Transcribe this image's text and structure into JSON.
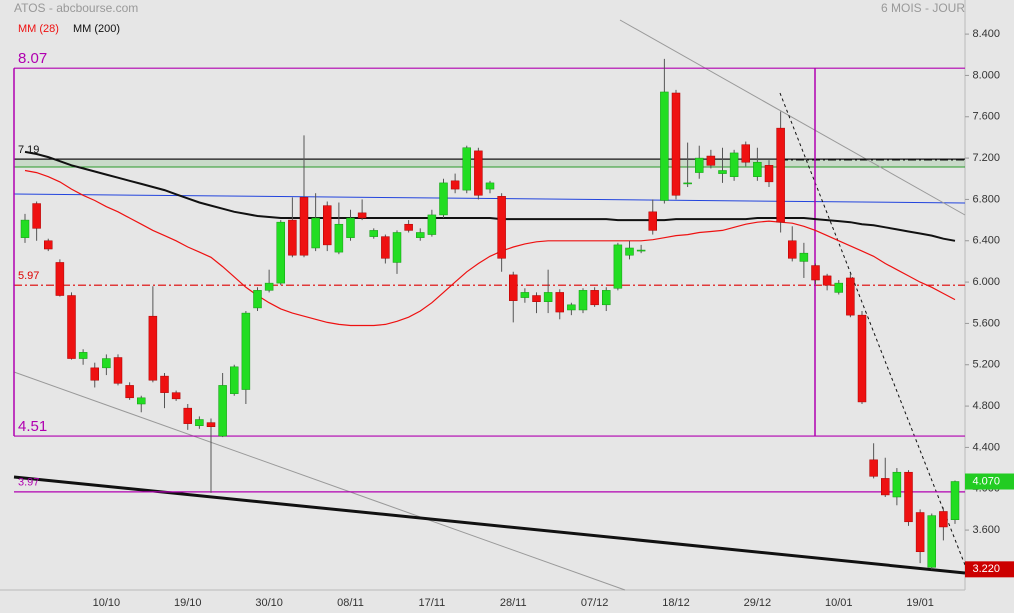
{
  "chart_data": {
    "type": "candlestick",
    "title": "ATOS - abcbourse.com",
    "subtitle": "6 MOIS - JOUR",
    "categories": [
      null,
      null,
      null,
      null,
      null,
      null,
      null,
      "10/10",
      null,
      null,
      null,
      null,
      null,
      null,
      "19/10",
      null,
      null,
      null,
      null,
      null,
      null,
      "30/10",
      null,
      null,
      null,
      null,
      null,
      null,
      "08/11",
      null,
      null,
      null,
      null,
      null,
      null,
      "17/11",
      null,
      null,
      null,
      null,
      null,
      null,
      "28/11",
      null,
      null,
      null,
      null,
      null,
      null,
      "07/12",
      null,
      null,
      null,
      null,
      null,
      null,
      "18/12",
      null,
      null,
      null,
      null,
      null,
      null,
      "29/12",
      null,
      null,
      null,
      null,
      null,
      null,
      "10/01",
      null,
      null,
      null,
      null,
      null,
      null,
      "19/01",
      null,
      null,
      null
    ],
    "open": [
      6.43,
      6.76,
      6.4,
      6.19,
      5.87,
      5.26,
      5.17,
      5.17,
      5.27,
      5.0,
      4.82,
      5.67,
      5.09,
      4.93,
      4.78,
      4.61,
      4.64,
      4.51,
      4.92,
      4.96,
      5.75,
      5.92,
      5.99,
      6.6,
      6.82,
      6.33,
      6.74,
      6.29,
      6.43,
      6.67,
      6.44,
      6.44,
      6.19,
      6.56,
      6.43,
      6.46,
      6.65,
      6.98,
      6.89,
      7.27,
      6.9,
      6.83,
      6.07,
      5.85,
      5.87,
      5.81,
      5.9,
      5.73,
      5.73,
      5.92,
      5.78,
      5.94,
      6.26,
      6.3,
      6.68,
      6.79,
      7.83,
      6.95,
      7.06,
      7.22,
      7.05,
      7.02,
      7.33,
      7.02,
      7.13,
      7.49,
      6.4,
      6.2,
      6.16,
      6.06,
      5.9,
      6.04,
      5.68,
      4.28,
      4.1,
      3.92,
      4.16,
      3.77,
      3.24,
      3.78,
      3.7
    ],
    "high": [
      6.66,
      6.78,
      6.42,
      6.22,
      5.9,
      5.35,
      5.22,
      5.3,
      5.3,
      5.03,
      4.9,
      5.96,
      5.12,
      4.95,
      4.82,
      4.7,
      4.68,
      5.12,
      5.2,
      5.72,
      5.95,
      6.12,
      6.6,
      6.82,
      7.42,
      6.86,
      6.78,
      6.77,
      6.7,
      6.8,
      6.52,
      6.46,
      6.5,
      6.6,
      6.52,
      6.7,
      7.0,
      7.05,
      7.32,
      7.3,
      6.98,
      6.86,
      6.1,
      5.94,
      5.9,
      6.12,
      5.93,
      5.8,
      5.94,
      5.95,
      5.95,
      6.38,
      6.4,
      6.36,
      6.8,
      8.16,
      7.86,
      7.35,
      7.32,
      7.28,
      7.3,
      7.28,
      7.36,
      7.3,
      7.18,
      7.65,
      6.54,
      6.38,
      6.18,
      6.08,
      6.02,
      6.08,
      5.72,
      4.44,
      4.3,
      4.2,
      4.18,
      3.8,
      3.76,
      3.82,
      4.08
    ],
    "low": [
      6.38,
      6.4,
      6.3,
      5.86,
      5.25,
      5.2,
      4.98,
      5.1,
      5.0,
      4.86,
      4.74,
      5.03,
      4.78,
      4.85,
      4.57,
      4.58,
      3.96,
      4.5,
      4.9,
      4.82,
      5.72,
      5.9,
      5.97,
      6.24,
      6.24,
      6.3,
      6.3,
      6.27,
      6.4,
      6.6,
      6.42,
      6.18,
      6.08,
      6.48,
      6.4,
      6.44,
      6.62,
      6.86,
      6.86,
      6.8,
      6.86,
      6.1,
      5.61,
      5.8,
      5.7,
      5.7,
      5.64,
      5.68,
      5.7,
      5.76,
      5.72,
      5.92,
      6.22,
      6.28,
      6.46,
      6.76,
      6.8,
      6.92,
      7.0,
      7.1,
      6.96,
      6.98,
      7.12,
      6.98,
      6.92,
      6.48,
      6.2,
      6.04,
      5.98,
      5.92,
      5.88,
      5.66,
      4.82,
      4.1,
      3.92,
      3.84,
      3.64,
      3.28,
      3.22,
      3.5,
      3.66
    ],
    "close": [
      6.6,
      6.52,
      6.32,
      5.87,
      5.26,
      5.32,
      5.05,
      5.26,
      5.02,
      4.88,
      4.88,
      5.05,
      4.93,
      4.87,
      4.63,
      4.67,
      4.6,
      5.0,
      5.18,
      5.7,
      5.92,
      5.99,
      6.58,
      6.26,
      6.26,
      6.62,
      6.36,
      6.56,
      6.62,
      6.62,
      6.5,
      6.23,
      6.48,
      6.5,
      6.48,
      6.65,
      6.96,
      6.9,
      7.3,
      6.84,
      6.96,
      6.23,
      5.82,
      5.9,
      5.81,
      5.9,
      5.71,
      5.78,
      5.92,
      5.78,
      5.92,
      6.36,
      6.33,
      6.31,
      6.5,
      7.84,
      6.84,
      6.96,
      7.2,
      7.13,
      7.08,
      7.25,
      7.16,
      7.16,
      6.97,
      6.58,
      6.23,
      6.28,
      6.02,
      5.97,
      5.99,
      5.68,
      4.84,
      4.12,
      3.94,
      4.16,
      3.68,
      3.39,
      3.74,
      3.63,
      4.07
    ],
    "up_color": "#22dd22",
    "down_color": "#ee1111",
    "series": [
      {
        "name": "MM (28)",
        "color": "#ee1111",
        "values": [
          7.08,
          7.06,
          7.02,
          6.97,
          6.9,
          6.84,
          6.79,
          6.73,
          6.68,
          6.62,
          6.56,
          6.5,
          6.45,
          6.4,
          6.34,
          6.29,
          6.24,
          6.15,
          6.05,
          5.95,
          5.87,
          5.8,
          5.74,
          5.7,
          5.67,
          5.64,
          5.61,
          5.59,
          5.58,
          5.58,
          5.58,
          5.59,
          5.62,
          5.66,
          5.72,
          5.8,
          5.9,
          6.0,
          6.1,
          6.18,
          6.25,
          6.3,
          6.34,
          6.37,
          6.39,
          6.4,
          6.4,
          6.4,
          6.4,
          6.4,
          6.4,
          6.4,
          6.4,
          6.4,
          6.41,
          6.43,
          6.45,
          6.46,
          6.48,
          6.49,
          6.5,
          6.53,
          6.56,
          6.58,
          6.59,
          6.58,
          6.57,
          6.54,
          6.5,
          6.45,
          6.4,
          6.35,
          6.3,
          6.25,
          6.18,
          6.12,
          6.06,
          6.0,
          5.95,
          5.89,
          5.83
        ]
      },
      {
        "name": "MM (200)",
        "color": "#111111",
        "values": [
          7.26,
          7.24,
          7.21,
          7.17,
          7.13,
          7.1,
          7.07,
          7.04,
          7.01,
          6.98,
          6.95,
          6.92,
          6.89,
          6.85,
          6.81,
          6.77,
          6.74,
          6.71,
          6.68,
          6.66,
          6.64,
          6.63,
          6.62,
          6.62,
          6.62,
          6.62,
          6.62,
          6.62,
          6.62,
          6.62,
          6.62,
          6.62,
          6.62,
          6.62,
          6.62,
          6.62,
          6.62,
          6.62,
          6.62,
          6.62,
          6.62,
          6.61,
          6.61,
          6.61,
          6.61,
          6.61,
          6.61,
          6.61,
          6.61,
          6.61,
          6.61,
          6.6,
          6.6,
          6.6,
          6.6,
          6.6,
          6.61,
          6.61,
          6.61,
          6.61,
          6.61,
          6.61,
          6.61,
          6.62,
          6.62,
          6.62,
          6.62,
          6.62,
          6.61,
          6.6,
          6.59,
          6.58,
          6.56,
          6.55,
          6.53,
          6.51,
          6.49,
          6.47,
          6.45,
          6.42,
          6.4
        ]
      }
    ],
    "ylim": [
      3.02,
      8.73
    ],
    "yticks": [
      {
        "value": 8.4,
        "label": "8.400"
      },
      {
        "value": 8.0,
        "label": "8.000"
      },
      {
        "value": 7.6,
        "label": "7.600"
      },
      {
        "value": 7.2,
        "label": "7.200"
      },
      {
        "value": 6.8,
        "label": "6.800"
      },
      {
        "value": 6.4,
        "label": "6.400"
      },
      {
        "value": 6.0,
        "label": "6.000"
      },
      {
        "value": 5.6,
        "label": "5.600"
      },
      {
        "value": 5.2,
        "label": "5.200"
      },
      {
        "value": 4.8,
        "label": "4.800"
      },
      {
        "value": 4.4,
        "label": "4.400"
      },
      {
        "value": 4.0,
        "label": "4.000"
      },
      {
        "value": 3.6,
        "label": "3.600"
      }
    ],
    "levels": [
      {
        "value": 8.07,
        "color": "#b000b0"
      },
      {
        "value": 7.19,
        "color": "#111111"
      },
      {
        "value": 5.97,
        "color": "#dd0000"
      },
      {
        "value": 4.51,
        "color": "#b000b0"
      },
      {
        "value": 3.97,
        "color": "#b000b0"
      }
    ],
    "badges": [
      {
        "value": 4.07,
        "label": "4.070",
        "color": "#22cc22"
      },
      {
        "value": 3.22,
        "label": "3.220",
        "color": "#cc0000"
      }
    ]
  }
}
